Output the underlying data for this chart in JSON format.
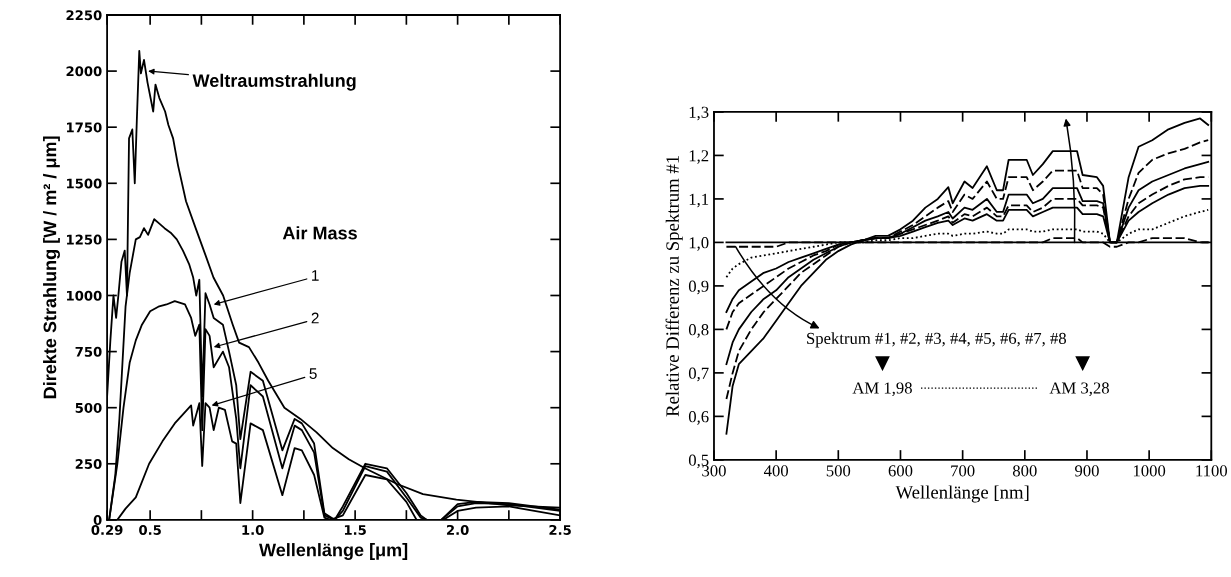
{
  "chart_data": [
    {
      "type": "line",
      "xlabel": "Wellenlänge [μm]",
      "ylabel": "Direkte Strahlung [W / m² / μm]",
      "xlim": [
        0.29,
        2.5
      ],
      "ylim": [
        0,
        2250
      ],
      "xticks": [
        {
          "value": 0.29,
          "label": "0.29"
        },
        {
          "value": 0.5,
          "label": "0.5"
        },
        {
          "value": 0.75,
          "label": null
        },
        {
          "value": 1.0,
          "label": "1.0"
        },
        {
          "value": 1.25,
          "label": null
        },
        {
          "value": 1.5,
          "label": "1.5"
        },
        {
          "value": 1.75,
          "label": null
        },
        {
          "value": 2.0,
          "label": "2.0"
        },
        {
          "value": 2.25,
          "label": null
        },
        {
          "value": 2.5,
          "label": "2.5"
        }
      ],
      "yticks": [
        0,
        250,
        500,
        750,
        1000,
        1250,
        1500,
        1750,
        2000,
        2250
      ],
      "series": [
        {
          "color": "#000000",
          "line_style": "solid",
          "x": [
            0.29,
            0.306,
            0.321,
            0.334,
            0.345,
            0.36,
            0.376,
            0.387,
            0.397,
            0.413,
            0.425,
            0.435,
            0.447,
            0.455,
            0.47,
            0.487,
            0.515,
            0.526,
            0.545,
            0.573,
            0.589,
            0.612,
            0.636,
            0.675,
            0.722,
            0.77,
            0.809,
            0.856,
            0.903,
            0.934,
            0.982,
            1.029,
            1.076,
            1.155,
            1.233,
            1.312,
            1.391,
            1.469,
            1.548,
            1.705,
            1.831,
            1.994,
            2.25,
            2.5
          ],
          "values": [
            550,
            800,
            1000,
            900,
            1000,
            1150,
            1200,
            1000,
            1700,
            1740,
            1500,
            1780,
            2090,
            1990,
            2050,
            1950,
            1820,
            1940,
            1880,
            1820,
            1760,
            1700,
            1580,
            1420,
            1300,
            1180,
            1080,
            1000,
            870,
            790,
            770,
            700,
            620,
            500,
            450,
            390,
            320,
            270,
            230,
            160,
            115,
            90,
            65,
            55
          ]
        },
        {
          "color": "#000000",
          "line_style": "solid",
          "x": [
            0.3,
            0.33,
            0.35,
            0.365,
            0.38,
            0.4,
            0.43,
            0.45,
            0.47,
            0.49,
            0.52,
            0.545,
            0.57,
            0.6,
            0.63,
            0.66,
            0.69,
            0.71,
            0.725,
            0.74,
            0.754,
            0.77,
            0.79,
            0.81,
            0.855,
            0.885,
            0.92,
            0.94,
            0.99,
            1.05,
            1.145,
            1.205,
            1.24,
            1.3,
            1.35,
            1.4,
            1.44,
            1.55,
            1.655,
            1.75,
            1.82,
            1.85,
            1.92,
            2.0,
            2.09,
            2.25,
            2.5
          ],
          "values": [
            0,
            200,
            450,
            700,
            950,
            1100,
            1250,
            1260,
            1300,
            1270,
            1340,
            1320,
            1300,
            1280,
            1250,
            1200,
            1140,
            1080,
            1000,
            1070,
            550,
            1010,
            960,
            900,
            870,
            750,
            600,
            360,
            660,
            620,
            310,
            450,
            430,
            340,
            30,
            0,
            60,
            250,
            230,
            120,
            20,
            0,
            0,
            70,
            80,
            75,
            45
          ]
        },
        {
          "color": "#000000",
          "line_style": "solid",
          "x": [
            0.3,
            0.34,
            0.37,
            0.4,
            0.43,
            0.46,
            0.5,
            0.54,
            0.58,
            0.62,
            0.67,
            0.7,
            0.72,
            0.74,
            0.754,
            0.77,
            0.79,
            0.81,
            0.855,
            0.885,
            0.92,
            0.94,
            0.99,
            1.05,
            1.145,
            1.205,
            1.24,
            1.3,
            1.35,
            1.4,
            1.44,
            1.55,
            1.655,
            1.75,
            1.82,
            1.85,
            1.92,
            2.0,
            2.09,
            2.25,
            2.5
          ],
          "values": [
            0,
            250,
            500,
            700,
            800,
            870,
            930,
            950,
            960,
            975,
            960,
            900,
            820,
            870,
            400,
            850,
            820,
            680,
            750,
            680,
            450,
            230,
            600,
            550,
            230,
            420,
            400,
            300,
            20,
            0,
            40,
            240,
            215,
            100,
            10,
            0,
            0,
            60,
            75,
            70,
            40
          ]
        },
        {
          "color": "#000000",
          "line_style": "solid",
          "x": [
            0.34,
            0.38,
            0.43,
            0.495,
            0.56,
            0.62,
            0.68,
            0.7,
            0.71,
            0.74,
            0.754,
            0.77,
            0.79,
            0.81,
            0.835,
            0.865,
            0.9,
            0.92,
            0.94,
            0.99,
            1.05,
            1.145,
            1.205,
            1.24,
            1.3,
            1.35,
            1.38,
            1.44,
            1.55,
            1.655,
            1.75,
            1.8,
            1.93,
            2.0,
            2.09,
            2.25,
            2.5
          ],
          "values": [
            0,
            50,
            100,
            250,
            350,
            430,
            490,
            510,
            420,
            520,
            240,
            520,
            500,
            400,
            500,
            490,
            350,
            340,
            75,
            430,
            400,
            110,
            320,
            310,
            200,
            10,
            0,
            20,
            200,
            180,
            80,
            0,
            0,
            40,
            55,
            60,
            20
          ]
        }
      ],
      "annotations": [
        {
          "text": "Weltraumstrahlung",
          "x": 0.49,
          "y": 2000
        },
        "Air Mass",
        {
          "text": "1",
          "x": 0.81,
          "y": 960
        },
        {
          "text": "2",
          "x": 0.81,
          "y": 770
        },
        {
          "text": "5",
          "x": 0.8,
          "y": 510
        }
      ]
    },
    {
      "type": "line",
      "xlabel": "Wellenlänge [nm]",
      "ylabel": "Relative Differenz zu Spektrum #1",
      "xlim": [
        300,
        1100
      ],
      "ylim": [
        0.5,
        1.3
      ],
      "xticks": [
        300,
        400,
        500,
        600,
        700,
        800,
        900,
        1000,
        1100
      ],
      "yticks": [
        {
          "value": 0.5,
          "label": "0,5"
        },
        {
          "value": 0.6,
          "label": "0,6"
        },
        {
          "value": 0.7,
          "label": "0,7"
        },
        {
          "value": 0.8,
          "label": "0,8"
        },
        {
          "value": 0.9,
          "label": "0,9"
        },
        {
          "value": 1.0,
          "label": "1,0"
        },
        {
          "value": 1.1,
          "label": "1,1"
        },
        {
          "value": 1.2,
          "label": "1,2"
        },
        {
          "value": 1.3,
          "label": "1,3"
        }
      ],
      "x": [
        320,
        330,
        340,
        360,
        380,
        400,
        420,
        440,
        460,
        480,
        500,
        520,
        540,
        560,
        580,
        600,
        620,
        640,
        660,
        677,
        684,
        703,
        716,
        739,
        755,
        765,
        774,
        803,
        813,
        829,
        845,
        865,
        884,
        893,
        916,
        926,
        937,
        948,
        967,
        983,
        1005,
        1031,
        1057,
        1082,
        1095
      ],
      "series": [
        {
          "color": "#000000",
          "line_style": "solid",
          "values": [
            1.0,
            1.0,
            1.0,
            1.0,
            1.0,
            1.0,
            1.0,
            1.0,
            1.0,
            1.0,
            1.0,
            1.0,
            1.0,
            1.0,
            1.0,
            1.0,
            1.0,
            1.0,
            1.0,
            1.0,
            1.0,
            1.0,
            1.0,
            1.0,
            1.0,
            1.0,
            1.0,
            1.0,
            1.0,
            1.0,
            1.0,
            1.0,
            1.0,
            1.0,
            1.0,
            1.0,
            1.0,
            1.0,
            1.0,
            1.0,
            1.0,
            1.0,
            1.0,
            1.0,
            1.0
          ]
        },
        {
          "color": "#000000",
          "line_style": "dashed",
          "values": [
            0.99,
            0.99,
            0.99,
            0.99,
            0.99,
            0.99,
            1.0,
            1.0,
            1.0,
            1.0,
            1.0,
            1.0,
            1.0,
            1.0,
            1.0,
            1.0,
            1.0,
            1.0,
            1.0,
            1.0,
            1.0,
            1.0,
            1.0,
            1.0,
            1.0,
            1.0,
            1.0,
            1.0,
            1.0,
            1.0,
            1.01,
            1.01,
            1.01,
            1.0,
            1.0,
            1.0,
            0.99,
            0.99,
            1.0,
            1.0,
            1.01,
            1.01,
            1.01,
            1.0,
            1.0
          ]
        },
        {
          "color": "#000000",
          "line_style": "dotted",
          "values": [
            0.92,
            0.94,
            0.95,
            0.965,
            0.97,
            0.975,
            0.98,
            0.985,
            0.99,
            0.995,
            1.0,
            1.0,
            1.0,
            1.005,
            1.005,
            1.01,
            1.01,
            1.015,
            1.02,
            1.02,
            1.015,
            1.02,
            1.02,
            1.025,
            1.02,
            1.02,
            1.03,
            1.03,
            1.025,
            1.025,
            1.03,
            1.03,
            1.03,
            1.025,
            1.025,
            1.02,
            1.0,
            1.0,
            1.02,
            1.03,
            1.03,
            1.045,
            1.06,
            1.07,
            1.075
          ]
        },
        {
          "color": "#000000",
          "line_style": "solid",
          "values": [
            0.84,
            0.87,
            0.89,
            0.91,
            0.93,
            0.94,
            0.955,
            0.965,
            0.975,
            0.985,
            0.995,
            1.0,
            1.005,
            1.01,
            1.01,
            1.015,
            1.025,
            1.035,
            1.045,
            1.05,
            1.04,
            1.055,
            1.05,
            1.065,
            1.05,
            1.05,
            1.075,
            1.075,
            1.06,
            1.07,
            1.08,
            1.08,
            1.08,
            1.065,
            1.065,
            1.06,
            1.0,
            1.0,
            1.05,
            1.07,
            1.09,
            1.11,
            1.125,
            1.13,
            1.13
          ]
        },
        {
          "color": "#000000",
          "line_style": "dashed",
          "values": [
            0.8,
            0.84,
            0.86,
            0.88,
            0.9,
            0.92,
            0.94,
            0.955,
            0.97,
            0.98,
            0.995,
            1.0,
            1.005,
            1.01,
            1.01,
            1.02,
            1.03,
            1.04,
            1.05,
            1.06,
            1.045,
            1.065,
            1.06,
            1.08,
            1.06,
            1.06,
            1.085,
            1.085,
            1.07,
            1.08,
            1.1,
            1.1,
            1.1,
            1.085,
            1.085,
            1.08,
            1.0,
            1.0,
            1.06,
            1.09,
            1.11,
            1.13,
            1.145,
            1.15,
            1.15
          ]
        },
        {
          "color": "#000000",
          "line_style": "solid",
          "values": [
            0.72,
            0.77,
            0.8,
            0.84,
            0.87,
            0.89,
            0.92,
            0.94,
            0.96,
            0.975,
            0.99,
            1.0,
            1.005,
            1.01,
            1.01,
            1.02,
            1.035,
            1.05,
            1.06,
            1.07,
            1.055,
            1.08,
            1.075,
            1.1,
            1.07,
            1.07,
            1.11,
            1.11,
            1.09,
            1.1,
            1.125,
            1.125,
            1.125,
            1.095,
            1.095,
            1.09,
            1.0,
            1.0,
            1.08,
            1.12,
            1.14,
            1.155,
            1.17,
            1.18,
            1.185
          ]
        },
        {
          "color": "#000000",
          "line_style": "dashed",
          "values": [
            0.64,
            0.7,
            0.75,
            0.8,
            0.84,
            0.87,
            0.9,
            0.93,
            0.95,
            0.97,
            0.99,
            1.0,
            1.005,
            1.01,
            1.01,
            1.025,
            1.04,
            1.06,
            1.08,
            1.095,
            1.07,
            1.11,
            1.1,
            1.14,
            1.1,
            1.1,
            1.15,
            1.15,
            1.12,
            1.14,
            1.165,
            1.165,
            1.165,
            1.125,
            1.125,
            1.11,
            1.0,
            1.0,
            1.1,
            1.16,
            1.19,
            1.205,
            1.215,
            1.23,
            1.235
          ]
        },
        {
          "color": "#000000",
          "line_style": "solid",
          "values": [
            0.56,
            0.67,
            0.72,
            0.75,
            0.78,
            0.82,
            0.86,
            0.9,
            0.93,
            0.96,
            0.98,
            0.995,
            1.005,
            1.015,
            1.015,
            1.03,
            1.05,
            1.08,
            1.1,
            1.127,
            1.09,
            1.14,
            1.125,
            1.175,
            1.12,
            1.12,
            1.19,
            1.19,
            1.155,
            1.18,
            1.21,
            1.21,
            1.21,
            1.155,
            1.15,
            1.13,
            1.0,
            1.0,
            1.15,
            1.22,
            1.235,
            1.26,
            1.275,
            1.285,
            1.27
          ]
        }
      ],
      "annotations": [
        "Spektrum #1, #2, #3, #4, #5, #6, #7, #8",
        "AM 1,98",
        "AM 3,28"
      ]
    }
  ]
}
